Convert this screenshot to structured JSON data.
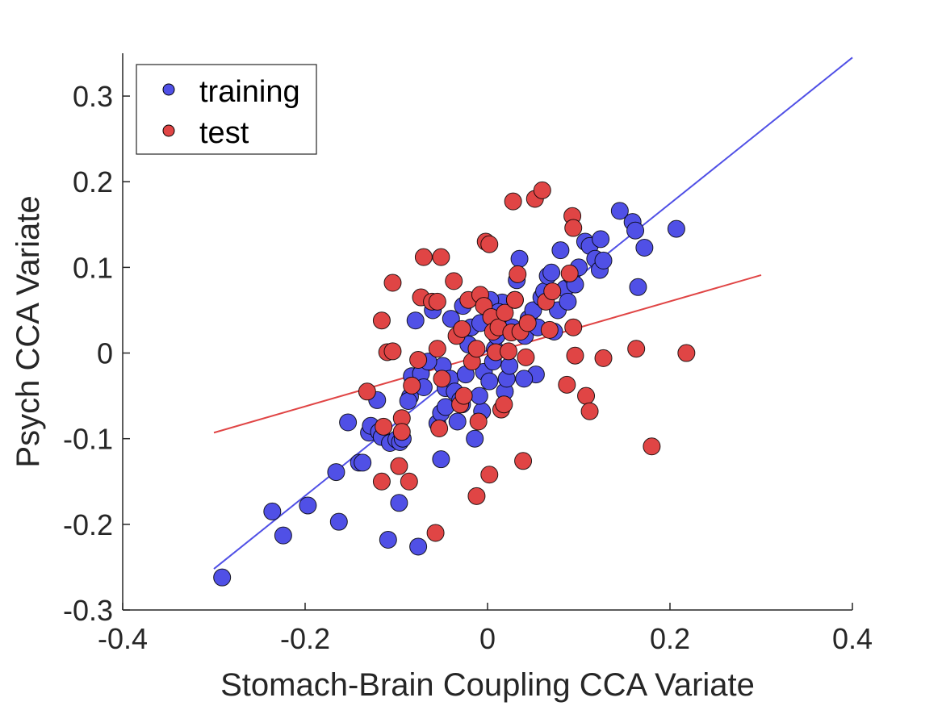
{
  "chart_data": {
    "type": "scatter",
    "title": "",
    "xlabel": "Stomach-Brain Coupling CCA Variate",
    "ylabel": "Psych CCA Variate",
    "xlim": [
      -0.4,
      0.4
    ],
    "ylim": [
      -0.3,
      0.35
    ],
    "xticks": [
      -0.4,
      -0.2,
      0,
      0.2,
      0.4
    ],
    "xtick_labels": [
      "-0.4",
      "-0.2",
      "0",
      "0.2",
      "0.4"
    ],
    "yticks": [
      -0.3,
      -0.2,
      -0.1,
      0,
      0.1,
      0.2,
      0.3
    ],
    "ytick_labels": [
      "-0.3",
      "-0.2",
      "-0.1",
      "0",
      "0.1",
      "0.2",
      "0.3"
    ],
    "grid": false,
    "legend_position": "top-left",
    "series": [
      {
        "name": "training",
        "color": "#5050e6",
        "fit_line": {
          "x": [
            -0.3,
            0.4
          ],
          "y": [
            -0.252,
            0.345
          ]
        },
        "points": [
          [
            -0.291,
            -0.262
          ],
          [
            -0.236,
            -0.185
          ],
          [
            -0.224,
            -0.213
          ],
          [
            -0.197,
            -0.178
          ],
          [
            -0.163,
            -0.197
          ],
          [
            -0.166,
            -0.139
          ],
          [
            -0.153,
            -0.081
          ],
          [
            -0.141,
            -0.128
          ],
          [
            -0.137,
            -0.128
          ],
          [
            -0.13,
            -0.093
          ],
          [
            -0.128,
            -0.085
          ],
          [
            -0.119,
            -0.092
          ],
          [
            -0.116,
            -0.098
          ],
          [
            -0.121,
            -0.055
          ],
          [
            -0.107,
            -0.105
          ],
          [
            -0.109,
            -0.218
          ],
          [
            -0.1,
            -0.101
          ],
          [
            -0.096,
            -0.104
          ],
          [
            -0.093,
            -0.1
          ],
          [
            -0.085,
            -0.051
          ],
          [
            -0.083,
            -0.027
          ],
          [
            -0.073,
            -0.024
          ],
          [
            -0.07,
            -0.04
          ],
          [
            -0.087,
            -0.056
          ],
          [
            -0.079,
            0.038
          ],
          [
            -0.097,
            -0.175
          ],
          [
            -0.076,
            -0.226
          ],
          [
            -0.051,
            -0.124
          ],
          [
            -0.055,
            -0.082
          ],
          [
            -0.051,
            -0.07
          ],
          [
            -0.046,
            -0.063
          ],
          [
            -0.046,
            -0.041
          ],
          [
            -0.049,
            -0.015
          ],
          [
            -0.041,
            -0.03
          ],
          [
            -0.036,
            -0.045
          ],
          [
            -0.033,
            -0.08
          ],
          [
            -0.028,
            -0.06
          ],
          [
            -0.024,
            -0.025
          ],
          [
            -0.021,
            0.01
          ],
          [
            -0.018,
            0.03
          ],
          [
            -0.014,
            -0.1
          ],
          [
            -0.006,
            -0.068
          ],
          [
            -0.009,
            -0.05
          ],
          [
            -0.004,
            -0.022
          ],
          [
            0.002,
            -0.033
          ],
          [
            0.006,
            -0.01
          ],
          [
            0.008,
            0.005
          ],
          [
            0.01,
            0.02
          ],
          [
            0.013,
            0.04
          ],
          [
            0.016,
            0.059
          ],
          [
            0.019,
            -0.045
          ],
          [
            0.021,
            -0.03
          ],
          [
            0.024,
            -0.015
          ],
          [
            0.027,
            0.03
          ],
          [
            0.03,
            0.062
          ],
          [
            0.032,
            0.085
          ],
          [
            0.035,
            0.11
          ],
          [
            0.041,
            0.02
          ],
          [
            0.045,
            0.04
          ],
          [
            0.05,
            0.05
          ],
          [
            0.053,
            -0.025
          ],
          [
            0.059,
            0.065
          ],
          [
            0.062,
            0.072
          ],
          [
            0.066,
            0.09
          ],
          [
            0.07,
            0.094
          ],
          [
            0.073,
            0.025
          ],
          [
            0.077,
            0.05
          ],
          [
            0.08,
            0.12
          ],
          [
            0.085,
            0.075
          ],
          [
            0.088,
            0.06
          ],
          [
            0.092,
            0.09
          ],
          [
            0.096,
            0.08
          ],
          [
            0.1,
            0.1
          ],
          [
            0.107,
            0.13
          ],
          [
            0.112,
            0.125
          ],
          [
            0.118,
            0.11
          ],
          [
            0.123,
            0.097
          ],
          [
            0.124,
            0.133
          ],
          [
            0.127,
            0.108
          ],
          [
            0.145,
            0.166
          ],
          [
            0.159,
            0.153
          ],
          [
            0.162,
            0.143
          ],
          [
            0.165,
            0.077
          ],
          [
            0.172,
            0.123
          ],
          [
            0.207,
            0.145
          ],
          [
            -0.06,
            0.05
          ],
          [
            -0.04,
            0.04
          ],
          [
            -0.027,
            0.055
          ],
          [
            -0.008,
            0.035
          ],
          [
            0.003,
            0.062
          ],
          [
            0.012,
            0.048
          ],
          [
            0.04,
            -0.03
          ],
          [
            0.055,
            0.03
          ],
          [
            -0.065,
            -0.01
          ],
          [
            -0.03,
            -0.055
          ]
        ]
      },
      {
        "name": "test",
        "color": "#e04545",
        "fit_line": {
          "x": [
            -0.3,
            0.3
          ],
          "y": [
            -0.093,
            0.091
          ]
        },
        "points": [
          [
            -0.132,
            -0.045
          ],
          [
            -0.116,
            0.038
          ],
          [
            -0.11,
            0.001
          ],
          [
            -0.114,
            -0.086
          ],
          [
            -0.116,
            -0.15
          ],
          [
            -0.104,
            0.002
          ],
          [
            -0.097,
            -0.132
          ],
          [
            -0.094,
            -0.076
          ],
          [
            -0.094,
            -0.092
          ],
          [
            -0.086,
            -0.15
          ],
          [
            -0.083,
            -0.038
          ],
          [
            -0.076,
            -0.008
          ],
          [
            -0.073,
            0.065
          ],
          [
            -0.061,
            0.06
          ],
          [
            -0.055,
            0.06
          ],
          [
            -0.055,
            0.005
          ],
          [
            -0.051,
            0.112
          ],
          [
            -0.053,
            -0.088
          ],
          [
            -0.05,
            -0.03
          ],
          [
            -0.037,
            0.084
          ],
          [
            -0.034,
            0.02
          ],
          [
            -0.03,
            -0.06
          ],
          [
            -0.026,
            -0.05
          ],
          [
            -0.021,
            0.062
          ],
          [
            -0.017,
            -0.01
          ],
          [
            -0.012,
            0.005
          ],
          [
            -0.008,
            0.068
          ],
          [
            -0.004,
            0.055
          ],
          [
            -0.002,
            0.13
          ],
          [
            0.002,
            0.127
          ],
          [
            0.004,
            0.042
          ],
          [
            0.006,
            0.025
          ],
          [
            0.009,
            0.001
          ],
          [
            0.012,
            0.03
          ],
          [
            0.015,
            -0.066
          ],
          [
            0.019,
            0.047
          ],
          [
            0.023,
            0.002
          ],
          [
            0.026,
            0.024
          ],
          [
            0.028,
            0.177
          ],
          [
            0.03,
            0.062
          ],
          [
            0.033,
            0.092
          ],
          [
            0.036,
            0.025
          ],
          [
            0.039,
            -0.126
          ],
          [
            0.042,
            -0.005
          ],
          [
            0.044,
            0.035
          ],
          [
            0.052,
            0.18
          ],
          [
            0.06,
            0.19
          ],
          [
            0.064,
            0.06
          ],
          [
            0.068,
            0.027
          ],
          [
            0.071,
            0.072
          ],
          [
            0.087,
            -0.037
          ],
          [
            0.09,
            0.093
          ],
          [
            0.093,
            0.16
          ],
          [
            0.094,
            0.146
          ],
          [
            0.094,
            0.03
          ],
          [
            0.096,
            -0.003
          ],
          [
            0.108,
            -0.05
          ],
          [
            0.112,
            -0.068
          ],
          [
            0.127,
            -0.006
          ],
          [
            0.163,
            0.005
          ],
          [
            0.18,
            -0.109
          ],
          [
            0.218,
            0.0
          ],
          [
            0.002,
            -0.142
          ],
          [
            -0.012,
            -0.167
          ],
          [
            -0.057,
            -0.21
          ],
          [
            -0.07,
            0.112
          ],
          [
            -0.028,
            0.028
          ],
          [
            0.018,
            -0.06
          ],
          [
            -0.104,
            0.082
          ],
          [
            -0.01,
            -0.08
          ]
        ]
      }
    ]
  }
}
